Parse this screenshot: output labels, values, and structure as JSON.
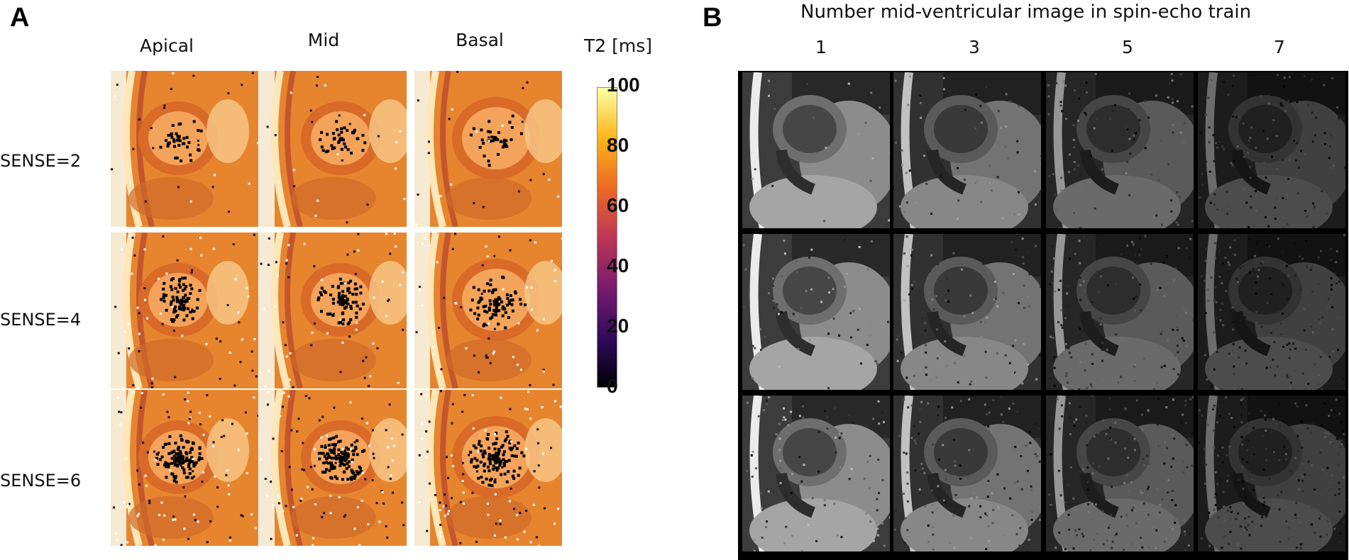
{
  "panel_a": {
    "letter": "A",
    "columns": [
      "Apical",
      "Mid",
      "Basal"
    ],
    "rows": [
      "SENSE=2",
      "SENSE=4",
      "SENSE=6"
    ],
    "colorbar": {
      "label": "T2 [ms]",
      "ticks": [
        "100",
        "80",
        "60",
        "40",
        "20",
        "0"
      ],
      "colormap": [
        "#000004",
        "#320a5e",
        "#781c6d",
        "#bc3754",
        "#ed6925",
        "#fbb61a",
        "#fcffa4"
      ]
    }
  },
  "panel_b": {
    "letter": "B",
    "title": "Number mid-ventricular image in spin-echo train",
    "columns": [
      "1",
      "3",
      "5",
      "7"
    ],
    "rows": 3
  }
}
